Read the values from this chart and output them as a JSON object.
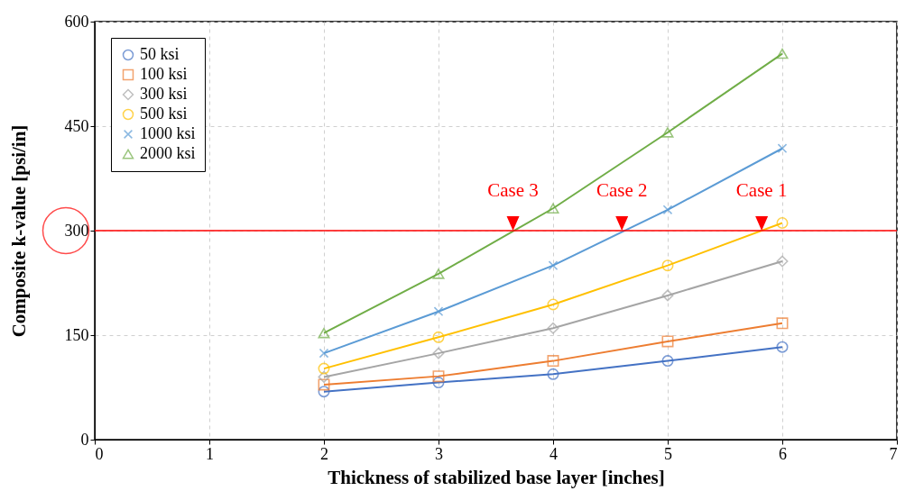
{
  "chart_data": {
    "type": "line",
    "xlabel": "Thickness of stabilized base layer [inches]",
    "ylabel": "Composite k-value [psi/in]",
    "xlim": [
      0,
      7
    ],
    "xticks": [
      0,
      1,
      2,
      3,
      4,
      5,
      6,
      7
    ],
    "ylim": [
      0,
      600
    ],
    "yticks": [
      0,
      150,
      300,
      450,
      600
    ],
    "grid": true,
    "legend": "top left",
    "line_style": "solid",
    "series": [
      {
        "name": "50 ksi",
        "color": "#4472c4",
        "marker": "circle",
        "x": [
          2,
          3,
          4,
          5,
          6
        ],
        "values": [
          69,
          82,
          94,
          113,
          133
        ]
      },
      {
        "name": "100 ksi",
        "color": "#ed7d31",
        "marker": "square",
        "x": [
          2,
          3,
          4,
          5,
          6
        ],
        "values": [
          79,
          91,
          113,
          141,
          167
        ]
      },
      {
        "name": "300 ksi",
        "color": "#a5a5a5",
        "marker": "diamond",
        "x": [
          2,
          3,
          4,
          5,
          6
        ],
        "values": [
          90,
          124,
          160,
          207,
          256
        ]
      },
      {
        "name": "500 ksi",
        "color": "#ffc000",
        "marker": "circle",
        "x": [
          2,
          3,
          4,
          5,
          6
        ],
        "values": [
          102,
          147,
          194,
          250,
          311
        ]
      },
      {
        "name": "1000 ksi",
        "color": "#5b9bd5",
        "marker": "cross",
        "x": [
          2,
          3,
          4,
          5,
          6
        ],
        "values": [
          124,
          184,
          250,
          330,
          418
        ]
      },
      {
        "name": "2000 ksi",
        "color": "#70ad47",
        "marker": "triangle",
        "x": [
          2,
          3,
          4,
          5,
          6
        ],
        "values": [
          153,
          238,
          332,
          441,
          554
        ]
      }
    ],
    "ref_lines": [
      {
        "axis": "y",
        "value": 300,
        "label": null,
        "color": "#ff0000"
      }
    ],
    "annotations": [
      {
        "text": "Case 3",
        "x": 3.65,
        "y": 300
      },
      {
        "text": "Case 2",
        "x": 4.6,
        "y": 300
      },
      {
        "text": "Case 1",
        "x": 5.82,
        "y": 300
      }
    ]
  }
}
